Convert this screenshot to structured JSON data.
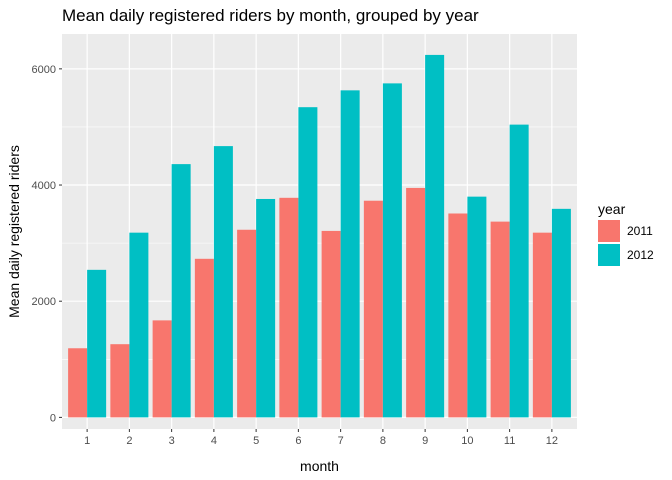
{
  "chart_data": {
    "type": "bar",
    "title": "Mean daily registered riders by month, grouped by year",
    "xlabel": "month",
    "ylabel": "Mean daily registered riders",
    "categories": [
      "1",
      "2",
      "3",
      "4",
      "5",
      "6",
      "7",
      "8",
      "9",
      "10",
      "11",
      "12"
    ],
    "series": [
      {
        "name": "2011",
        "color": "#F8766D",
        "values": [
          1190,
          1260,
          1670,
          2730,
          3230,
          3780,
          3210,
          3730,
          3950,
          3510,
          3370,
          3180
        ]
      },
      {
        "name": "2012",
        "color": "#00BFC4",
        "values": [
          2540,
          3180,
          4360,
          4670,
          3760,
          5340,
          5630,
          5750,
          6240,
          3800,
          5040,
          3590
        ]
      }
    ],
    "ylim": [
      0,
      6500
    ],
    "yticks": [
      0,
      2000,
      4000,
      6000
    ],
    "legend_title": "year",
    "legend_position": "right",
    "grid": true,
    "panel_background": "#EBEBEB"
  }
}
